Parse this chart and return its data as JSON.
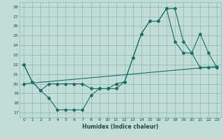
{
  "xlabel": "Humidex (Indice chaleur)",
  "bg_color": "#c2ddd8",
  "grid_color": "#8ab8b2",
  "line_color": "#1a6e64",
  "xlim": [
    -0.5,
    23.5
  ],
  "ylim": [
    16.5,
    28.5
  ],
  "yticks": [
    17,
    18,
    19,
    20,
    21,
    22,
    23,
    24,
    25,
    26,
    27,
    28
  ],
  "xticks": [
    0,
    1,
    2,
    3,
    4,
    5,
    6,
    7,
    8,
    9,
    10,
    11,
    12,
    13,
    14,
    15,
    16,
    17,
    18,
    19,
    20,
    21,
    22,
    23
  ],
  "series1_x": [
    0,
    1,
    2,
    3,
    4,
    5,
    6,
    7,
    8,
    9,
    10,
    11,
    12,
    13,
    14,
    15,
    16,
    17,
    18,
    19,
    20,
    21,
    22,
    23
  ],
  "series1_y": [
    22,
    20.2,
    19.3,
    18.5,
    17.3,
    17.3,
    17.3,
    17.3,
    18.8,
    19.5,
    19.5,
    19.5,
    20.2,
    22.7,
    25.2,
    26.5,
    26.5,
    27.8,
    27.8,
    24.4,
    23.2,
    25.2,
    23.2,
    21.7
  ],
  "series2_x": [
    0,
    23
  ],
  "series2_y": [
    20.0,
    21.8
  ],
  "series3_x": [
    0,
    1,
    2,
    3,
    4,
    5,
    6,
    7,
    8,
    9,
    10,
    11,
    12,
    13,
    14,
    15,
    16,
    17,
    18,
    19,
    20,
    21,
    22,
    23
  ],
  "series3_y": [
    22.0,
    20.2,
    19.3,
    20.0,
    20.0,
    20.0,
    20.0,
    20.0,
    19.5,
    19.5,
    19.5,
    20.0,
    20.2,
    22.7,
    25.2,
    26.5,
    26.5,
    27.8,
    24.4,
    23.2,
    23.2,
    21.7,
    21.7,
    21.7
  ]
}
